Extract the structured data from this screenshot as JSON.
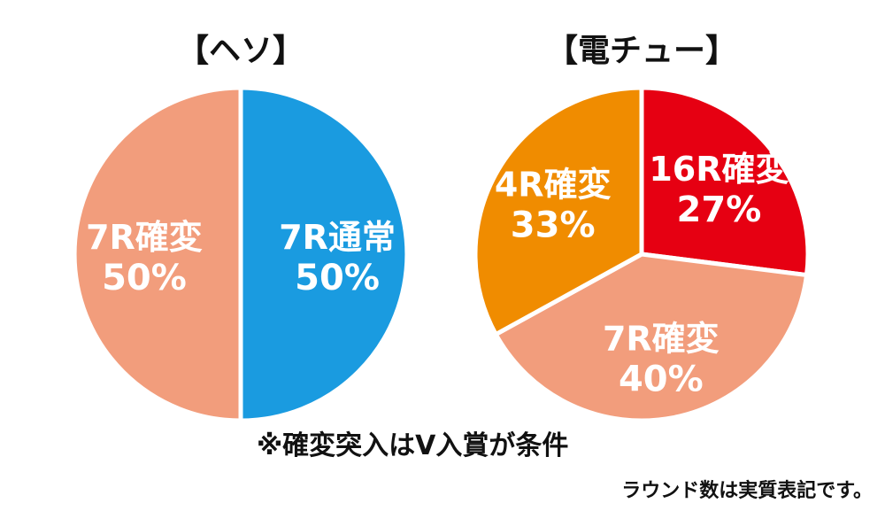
{
  "chart_data": [
    {
      "type": "pie",
      "title": "【ヘソ】",
      "slices": [
        {
          "label": "7R通常",
          "value": 50,
          "value_label": "50%",
          "color": "#1a9be0"
        },
        {
          "label": "7R確変",
          "value": 50,
          "value_label": "50%",
          "color": "#f29d7c"
        }
      ]
    },
    {
      "type": "pie",
      "title": "【電チュー】",
      "slices": [
        {
          "label": "16R確変",
          "value": 27,
          "value_label": "27%",
          "color": "#e60012"
        },
        {
          "label": "7R確変",
          "value": 40,
          "value_label": "40%",
          "color": "#f29d7c"
        },
        {
          "label": "4R確変",
          "value": 33,
          "value_label": "33%",
          "color": "#f08c00"
        }
      ]
    }
  ],
  "notes": {
    "main": "※確変突入はV入賞が条件",
    "sub": "ラウンド数は実質表記です。"
  }
}
